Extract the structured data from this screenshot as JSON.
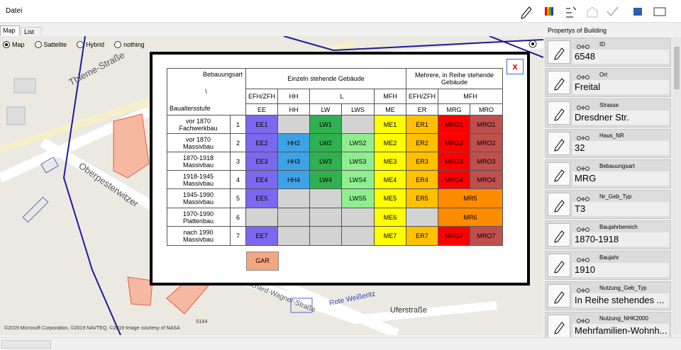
{
  "menu": {
    "items": [
      "Datei"
    ]
  },
  "tabs": [
    "Map",
    "List"
  ],
  "map_options": [
    "Map",
    "Sattelite",
    "Hybrid",
    "nothing"
  ],
  "map": {
    "labels": [
      "Thieme-Straße",
      "Oberpesterwitzer",
      "Richard-Wagner-Straße",
      "Rote Weißeritz",
      "Uferstraße",
      "S194"
    ],
    "copyright": "©2019 Microsoft Corporation, ©2019 NAVTEQ, ©2019 Image courtesy of NASA"
  },
  "dialog": {
    "close": "x",
    "table": {
      "corner": {
        "top": "Bebauungsart",
        "middle": "\\",
        "bottom": "Baualtersstufe"
      },
      "groups": [
        "Einzeln stehende Gebäude",
        "Mehrere, in Reihe stehende Gebäude"
      ],
      "subgroups": [
        "EFH/ZFH",
        "HH",
        "L",
        "MFH",
        "EFH/ZFH",
        "MFH"
      ],
      "codes": [
        "EE",
        "HH",
        "LW",
        "LWS",
        "ME",
        "ER",
        "MRG",
        "MRO"
      ],
      "rows": [
        {
          "label": [
            "vor 1870",
            "Fachwerkbau"
          ],
          "number": "1",
          "cells": [
            "EE1",
            null,
            "LW1",
            null,
            "ME1",
            "ER1",
            "MRG1",
            "MRO1"
          ]
        },
        {
          "label": [
            "vor 1870",
            "Massivbau"
          ],
          "number": "2",
          "cells": [
            "EE2",
            "HH2",
            "LW2",
            "LWS2",
            "ME2",
            "ER2",
            "MRG2",
            "MRO2"
          ]
        },
        {
          "label": [
            "1870-1918",
            "Massivbau"
          ],
          "number": "3",
          "cells": [
            "EE3",
            "HH3",
            "LW3",
            "LWS3",
            "ME3",
            "ER3",
            "MRG3",
            "MRO3"
          ]
        },
        {
          "label": [
            "1918-1945",
            "Massivbau"
          ],
          "number": "4",
          "cells": [
            "EE4",
            "HH4",
            "LW4",
            "LWS4",
            "ME4",
            "ER4",
            "MRG4",
            "MRO4"
          ]
        },
        {
          "label": [
            "1945-1990",
            "Massivbau"
          ],
          "number": "5",
          "cells": [
            "EE5",
            null,
            null,
            "LWS5",
            "ME5",
            "ER5",
            "MR5"
          ]
        },
        {
          "label": [
            "1970-1990",
            "Plattenbau"
          ],
          "number": "6",
          "cells": [
            null,
            null,
            null,
            null,
            "ME6",
            null,
            "MR6"
          ]
        },
        {
          "label": [
            "nach 1990",
            "Massivbau"
          ],
          "number": "7",
          "cells": [
            "EE7",
            null,
            null,
            null,
            "ME7",
            "ER7",
            "MRG7",
            "MRO7"
          ]
        }
      ]
    },
    "button": "GAR"
  },
  "properties": {
    "title": "Propertys of Building",
    "fields": [
      {
        "label": "ID",
        "value": "6548"
      },
      {
        "label": "Ort",
        "value": "Freital"
      },
      {
        "label": "Strasse",
        "value": "Dresdner Str."
      },
      {
        "label": "Haus_NR",
        "value": "32"
      },
      {
        "label": "Bebauungsart",
        "value": "MRG"
      },
      {
        "label": "Nr_Geb_Typ",
        "value": "T3"
      },
      {
        "label": "Baujahrbereich",
        "value": "1870-1918"
      },
      {
        "label": "Baujahr",
        "value": "1910"
      },
      {
        "label": "Nutzung_Geb_Typ",
        "value": "In Reihe stehendes ..."
      },
      {
        "label": "Nutzung_NHK2000",
        "value": "Mehrfamilien-Wohnh..."
      }
    ]
  }
}
